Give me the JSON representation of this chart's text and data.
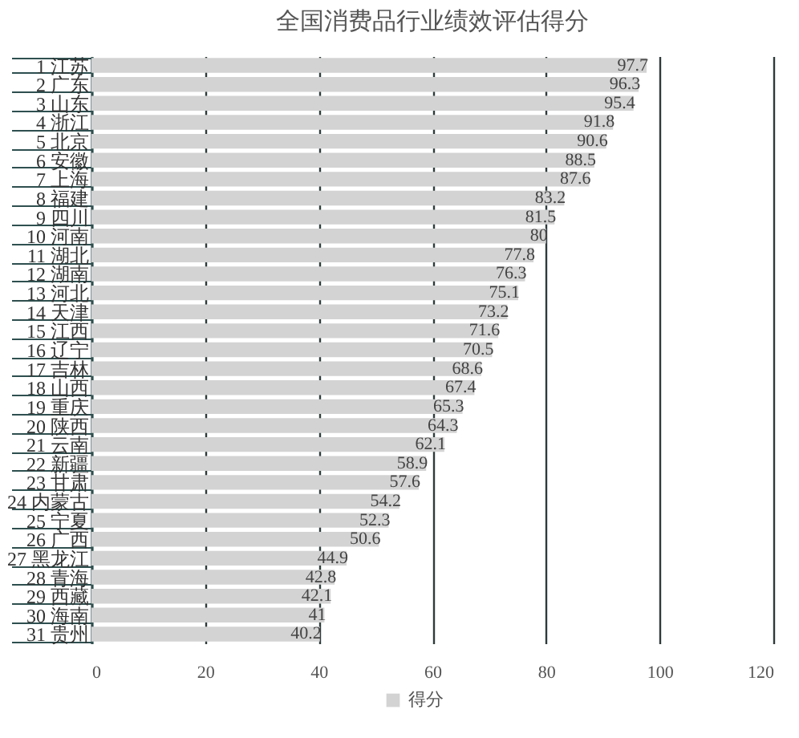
{
  "chart_data": {
    "type": "bar",
    "orientation": "horizontal",
    "title": "全国消费品行业绩效评估得分",
    "categories": [
      "1 江苏",
      "2 广东",
      "3 山东",
      "4 浙江",
      "5 北京",
      "6 安徽",
      "7 上海",
      "8 福建",
      "9 四川",
      "10 河南",
      "11 湖北",
      "12 湖南",
      "13 河北",
      "14 天津",
      "15 江西",
      "16 辽宁",
      "17 吉林",
      "18 山西",
      "19 重庆",
      "20 陕西",
      "21 云南",
      "22 新疆",
      "23 甘肃",
      "24 内蒙古",
      "25 宁夏",
      "26 广西",
      "27 黑龙江",
      "28 青海",
      "29 西藏",
      "30 海南",
      "31 贵州"
    ],
    "series": [
      {
        "name": "得分",
        "color": "#d3d3d3",
        "values": [
          97.7,
          96.3,
          95.4,
          91.8,
          90.6,
          88.5,
          87.6,
          83.2,
          81.5,
          80,
          77.8,
          76.3,
          75.1,
          73.2,
          71.6,
          70.5,
          68.6,
          67.4,
          65.3,
          64.3,
          62.1,
          58.9,
          57.6,
          54.2,
          52.3,
          50.6,
          44.9,
          42.8,
          42.1,
          41,
          40.2
        ]
      }
    ],
    "xlim": [
      0,
      120
    ],
    "xticks": [
      0,
      20,
      40,
      60,
      80,
      100,
      120
    ],
    "grid": "x",
    "legend": "bottom",
    "data_labels": true
  }
}
